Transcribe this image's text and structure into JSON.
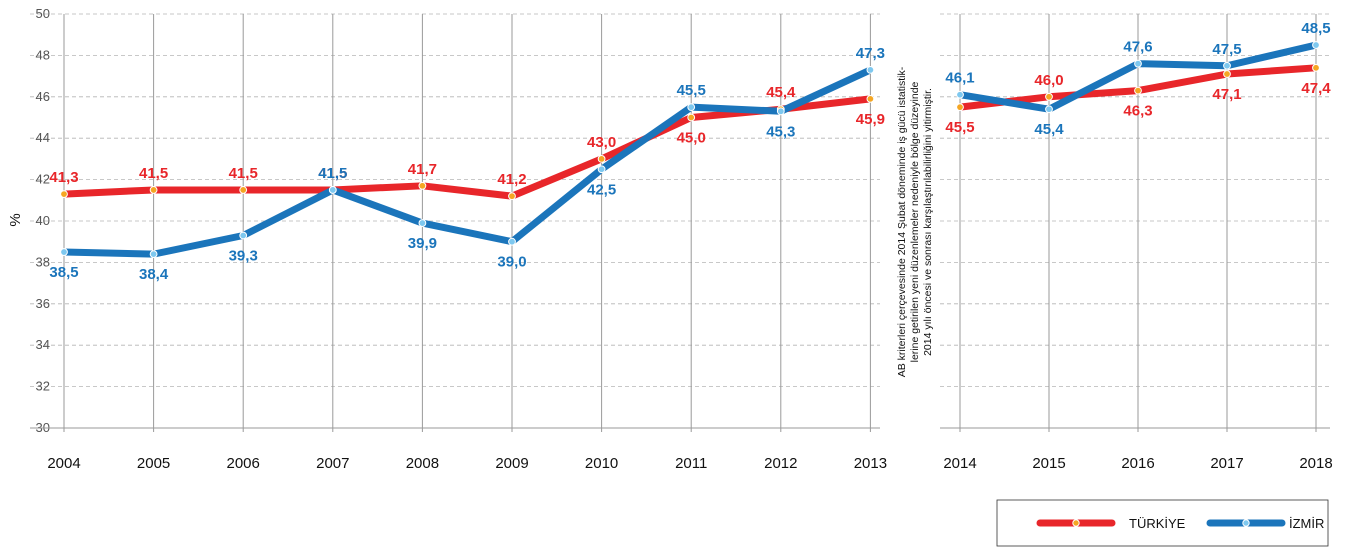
{
  "chart_data": {
    "type": "line",
    "ylabel": "%",
    "ylim": [
      30,
      50
    ],
    "yticks": [
      30,
      32,
      34,
      36,
      38,
      40,
      42,
      44,
      46,
      48,
      50
    ],
    "grid": true,
    "legend_position": "bottom-right",
    "categories": [
      "2004",
      "2005",
      "2006",
      "2007",
      "2008",
      "2009",
      "2010",
      "2011",
      "2012",
      "2013",
      "2014",
      "2015",
      "2016",
      "2017",
      "2018"
    ],
    "series": [
      {
        "name": "TÜRKİYE",
        "color": "#e8262a",
        "values": [
          41.3,
          41.5,
          41.5,
          41.5,
          41.7,
          41.2,
          43.0,
          45.0,
          45.4,
          45.9,
          45.5,
          46.0,
          46.3,
          47.1,
          47.4
        ],
        "labels": [
          "41,3",
          "41,5",
          "41,5",
          "41,5",
          "41,7",
          "41,2",
          "43,0",
          "45,0",
          "45,4",
          "45,9",
          "45,5",
          "46,0",
          "46,3",
          "47,1",
          "47,4"
        ]
      },
      {
        "name": "İZMİR",
        "color": "#1b75bb",
        "values": [
          38.5,
          38.4,
          39.3,
          41.5,
          39.9,
          39.0,
          42.5,
          45.5,
          45.3,
          47.3,
          46.1,
          45.4,
          47.6,
          47.5,
          48.5
        ],
        "labels": [
          "38,5",
          "38,4",
          "39,3",
          "41,5",
          "39,9",
          "39,0",
          "42,5",
          "45,5",
          "45,3",
          "47,3",
          "46,1",
          "45,4",
          "47,6",
          "47,5",
          "48,5"
        ]
      }
    ],
    "segments": [
      {
        "start": "2004",
        "end": "2013"
      },
      {
        "start": "2014",
        "end": "2018"
      }
    ],
    "annotation": {
      "lines": [
        "AB kriterleri çerçevesinde 2014 Şubat döneminde iş gücü istatistik-",
        "lerine getirilen yeni düzenlemeler nedeniyle bölge düzeyinde",
        "2014 yılı öncesi ve sonrası karşılaştırılabilirliğini yitirmiştir."
      ]
    }
  },
  "legend": {
    "items": [
      {
        "label": "TÜRKİYE",
        "color": "#e8262a",
        "marker_fill": "#f5a623"
      },
      {
        "label": "İZMİR",
        "color": "#1b75bb",
        "marker_fill": "#7ec8ef"
      }
    ]
  }
}
